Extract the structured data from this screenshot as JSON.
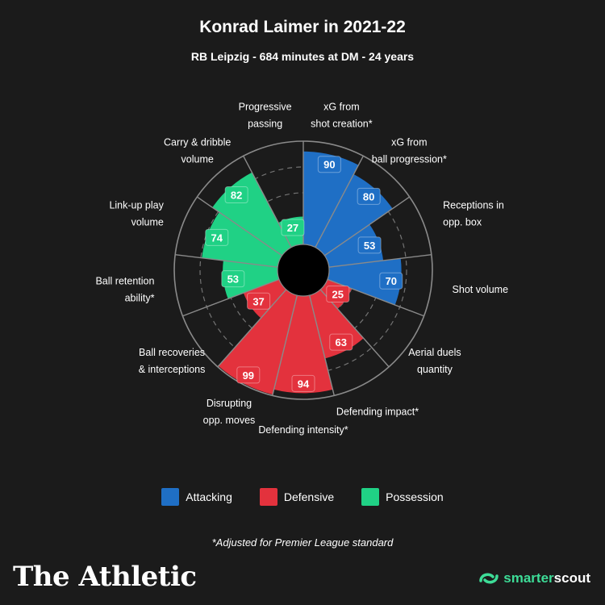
{
  "title": "Konrad Laimer in 2021-22",
  "subtitle": "RB Leipzig - 684 minutes at DM - 24 years",
  "colors": {
    "background": "#1b1b1b",
    "attacking": "#1f6fc5",
    "defensive": "#e3323d",
    "possession": "#20d185",
    "grid": "#8a8a8a"
  },
  "legend": [
    {
      "key": "attacking",
      "label": "Attacking"
    },
    {
      "key": "defensive",
      "label": "Defensive"
    },
    {
      "key": "possession",
      "label": "Possession"
    }
  ],
  "footnote": "*Adjusted for Premier League standard",
  "brand_left": "The Athletic",
  "brand_right": {
    "smarter": "smarter",
    "scout": "scout",
    "icon": "smarterscout-logo-icon"
  },
  "chart_data": {
    "type": "polar-bar",
    "scale": [
      0,
      100
    ],
    "categories": [
      {
        "label": "xG from shot creation*",
        "lines": [
          "xG from",
          "shot creation*"
        ],
        "value": 90,
        "group": "attacking"
      },
      {
        "label": "xG from ball progression*",
        "lines": [
          "xG from",
          "ball progression*"
        ],
        "value": 80,
        "group": "attacking"
      },
      {
        "label": "Receptions in opp. box",
        "lines": [
          "Receptions in",
          "opp. box"
        ],
        "value": 53,
        "group": "attacking"
      },
      {
        "label": "Shot volume",
        "lines": [
          "Shot volume"
        ],
        "value": 70,
        "group": "attacking"
      },
      {
        "label": "Aerial duels quantity",
        "lines": [
          "Aerial duels",
          "quantity"
        ],
        "value": 25,
        "group": "defensive"
      },
      {
        "label": "Defending impact*",
        "lines": [
          "Defending impact*"
        ],
        "value": 63,
        "group": "defensive"
      },
      {
        "label": "Defending intensity*",
        "lines": [
          "Defending intensity*"
        ],
        "value": 94,
        "group": "defensive"
      },
      {
        "label": "Disrupting opp. moves",
        "lines": [
          "Disrupting",
          "opp. moves"
        ],
        "value": 99,
        "group": "defensive"
      },
      {
        "label": "Ball recoveries & interceptions",
        "lines": [
          "Ball recoveries",
          "& interceptions"
        ],
        "value": 37,
        "group": "defensive"
      },
      {
        "label": "Ball retention ability*",
        "lines": [
          "Ball retention",
          "ability*"
        ],
        "value": 53,
        "group": "possession"
      },
      {
        "label": "Link-up play volume",
        "lines": [
          "Link-up play",
          "volume"
        ],
        "value": 74,
        "group": "possession"
      },
      {
        "label": "Carry & dribble volume",
        "lines": [
          "Carry & dribble",
          "volume"
        ],
        "value": 82,
        "group": "possession"
      },
      {
        "label": "Progressive passing",
        "lines": [
          "Progressive",
          "passing"
        ],
        "value": 27,
        "group": "possession"
      }
    ]
  }
}
